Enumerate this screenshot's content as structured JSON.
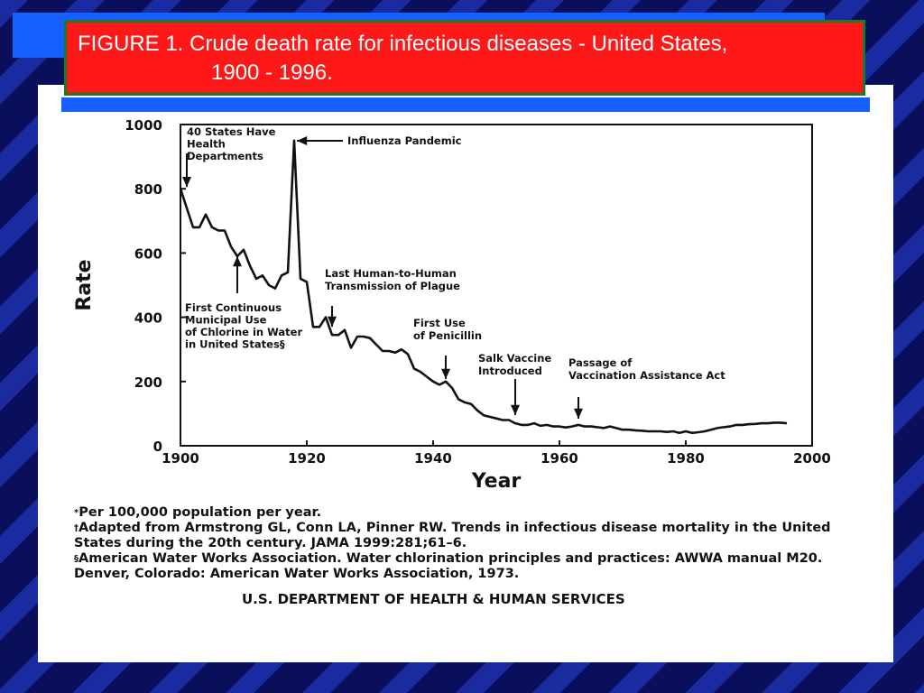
{
  "slide": {
    "title_line1": "FIGURE 1. Crude death rate for infectious diseases - United States,",
    "title_line2": "1900 - 1996.",
    "colors": {
      "background": "#0a0f5c",
      "accent_blue": "#1560ff",
      "title_box": "#ff1818",
      "title_border": "#1a7a2a"
    }
  },
  "footnotes": [
    {
      "mark": "*",
      "text": "Per 100,000 population per year."
    },
    {
      "mark": "†",
      "text": "Adapted from Armstrong GL, Conn LA, Pinner RW. Trends in infectious disease mortality in the United States during the 20th century. JAMA 1999:281;61–6."
    },
    {
      "mark": "§",
      "text": "American Water Works Association. Water chlorination principles and practices: AWWA manual M20. Denver, Colorado: American Water Works Association, 1973."
    }
  ],
  "agency": "U.S. DEPARTMENT OF HEALTH & HUMAN SERVICES",
  "chart_data": {
    "type": "line",
    "title": "",
    "xlabel": "Year",
    "ylabel": "Rate",
    "xlim": [
      1900,
      2000
    ],
    "ylim": [
      0,
      1000
    ],
    "xticks": [
      1900,
      1920,
      1940,
      1960,
      1980,
      2000
    ],
    "yticks": [
      0,
      200,
      400,
      600,
      800,
      1000
    ],
    "grid": false,
    "series": [
      {
        "x": [
          1900,
          1901,
          1902,
          1903,
          1904,
          1905,
          1906,
          1907,
          1908,
          1909,
          1910,
          1911,
          1912,
          1913,
          1914,
          1915,
          1916,
          1917,
          1918,
          1919,
          1920,
          1921,
          1922,
          1923,
          1924,
          1925,
          1926,
          1927,
          1928,
          1929,
          1930,
          1931,
          1932,
          1933,
          1934,
          1935,
          1936,
          1937,
          1938,
          1939,
          1940,
          1941,
          1942,
          1943,
          1944,
          1945,
          1946,
          1947,
          1948,
          1949,
          1950,
          1951,
          1952,
          1953,
          1954,
          1955,
          1956,
          1957,
          1958,
          1959,
          1960,
          1961,
          1962,
          1963,
          1964,
          1965,
          1966,
          1967,
          1968,
          1969,
          1970,
          1971,
          1972,
          1973,
          1974,
          1975,
          1976,
          1977,
          1978,
          1979,
          1980,
          1981,
          1982,
          1983,
          1984,
          1985,
          1986,
          1987,
          1988,
          1989,
          1990,
          1991,
          1992,
          1993,
          1994,
          1995,
          1996
        ],
        "values": [
          800,
          740,
          680,
          680,
          720,
          680,
          670,
          670,
          620,
          590,
          610,
          560,
          520,
          530,
          500,
          490,
          530,
          540,
          950,
          520,
          510,
          370,
          370,
          400,
          345,
          345,
          360,
          305,
          340,
          340,
          335,
          315,
          295,
          295,
          290,
          300,
          285,
          240,
          230,
          215,
          200,
          190,
          200,
          180,
          145,
          135,
          130,
          110,
          95,
          90,
          85,
          80,
          80,
          70,
          65,
          65,
          70,
          62,
          65,
          60,
          60,
          57,
          60,
          65,
          60,
          60,
          58,
          55,
          60,
          55,
          50,
          50,
          48,
          47,
          45,
          45,
          45,
          43,
          45,
          40,
          45,
          40,
          42,
          45,
          50,
          55,
          58,
          60,
          65,
          65,
          67,
          68,
          70,
          70,
          72,
          72,
          70
        ]
      }
    ],
    "annotations": [
      {
        "text": [
          "40 States Have",
          "Health",
          "Departments"
        ],
        "year": 1901
      },
      {
        "text": [
          "Influenza Pandemic"
        ],
        "year": 1918
      },
      {
        "text": [
          "First Continuous",
          "Municipal Use",
          "of Chlorine in Water",
          "in United States§"
        ],
        "year": 1909
      },
      {
        "text": [
          "Last Human-to-Human",
          "Transmission of Plague"
        ],
        "year": 1924
      },
      {
        "text": [
          "First Use",
          "of Penicillin"
        ],
        "year": 1942
      },
      {
        "text": [
          "Salk Vaccine",
          "Introduced"
        ],
        "year": 1953
      },
      {
        "text": [
          "Passage of",
          "Vaccination Assistance Act"
        ],
        "year": 1963
      }
    ]
  }
}
